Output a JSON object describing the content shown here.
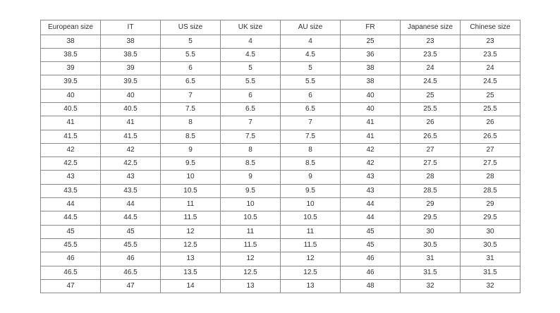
{
  "chart_data": {
    "type": "table",
    "title": "",
    "columns": [
      "European size",
      "IT",
      "US size",
      "UK size",
      "AU size",
      "FR",
      "Japanese size",
      "Chinese size"
    ],
    "rows": [
      [
        "38",
        "38",
        "5",
        "4",
        "4",
        "25",
        "23",
        "23"
      ],
      [
        "38.5",
        "38.5",
        "5.5",
        "4.5",
        "4.5",
        "36",
        "23.5",
        "23.5"
      ],
      [
        "39",
        "39",
        "6",
        "5",
        "5",
        "38",
        "24",
        "24"
      ],
      [
        "39.5",
        "39.5",
        "6.5",
        "5.5",
        "5.5",
        "38",
        "24.5",
        "24.5"
      ],
      [
        "40",
        "40",
        "7",
        "6",
        "6",
        "40",
        "25",
        "25"
      ],
      [
        "40.5",
        "40.5",
        "7.5",
        "6.5",
        "6.5",
        "40",
        "25.5",
        "25.5"
      ],
      [
        "41",
        "41",
        "8",
        "7",
        "7",
        "41",
        "26",
        "26"
      ],
      [
        "41.5",
        "41.5",
        "8.5",
        "7.5",
        "7.5",
        "41",
        "26.5",
        "26.5"
      ],
      [
        "42",
        "42",
        "9",
        "8",
        "8",
        "42",
        "27",
        "27"
      ],
      [
        "42.5",
        "42.5",
        "9.5",
        "8.5",
        "8.5",
        "42",
        "27.5",
        "27.5"
      ],
      [
        "43",
        "43",
        "10",
        "9",
        "9",
        "43",
        "28",
        "28"
      ],
      [
        "43.5",
        "43.5",
        "10.5",
        "9.5",
        "9.5",
        "43",
        "28.5",
        "28.5"
      ],
      [
        "44",
        "44",
        "11",
        "10",
        "10",
        "44",
        "29",
        "29"
      ],
      [
        "44.5",
        "44.5",
        "11.5",
        "10.5",
        "10.5",
        "44",
        "29.5",
        "29.5"
      ],
      [
        "45",
        "45",
        "12",
        "11",
        "11",
        "45",
        "30",
        "30"
      ],
      [
        "45.5",
        "45.5",
        "12.5",
        "11.5",
        "11.5",
        "45",
        "30.5",
        "30.5"
      ],
      [
        "46",
        "46",
        "13",
        "12",
        "12",
        "46",
        "31",
        "31"
      ],
      [
        "46.5",
        "46.5",
        "13.5",
        "12.5",
        "12.5",
        "46",
        "31.5",
        "31.5"
      ],
      [
        "47",
        "47",
        "14",
        "13",
        "13",
        "48",
        "32",
        "32"
      ]
    ],
    "layout": {
      "grid": "all-borders",
      "border_color": "#8a8a8a",
      "text_color": "#2e2e2e",
      "background": "#ffffff",
      "header_bold": false
    }
  }
}
